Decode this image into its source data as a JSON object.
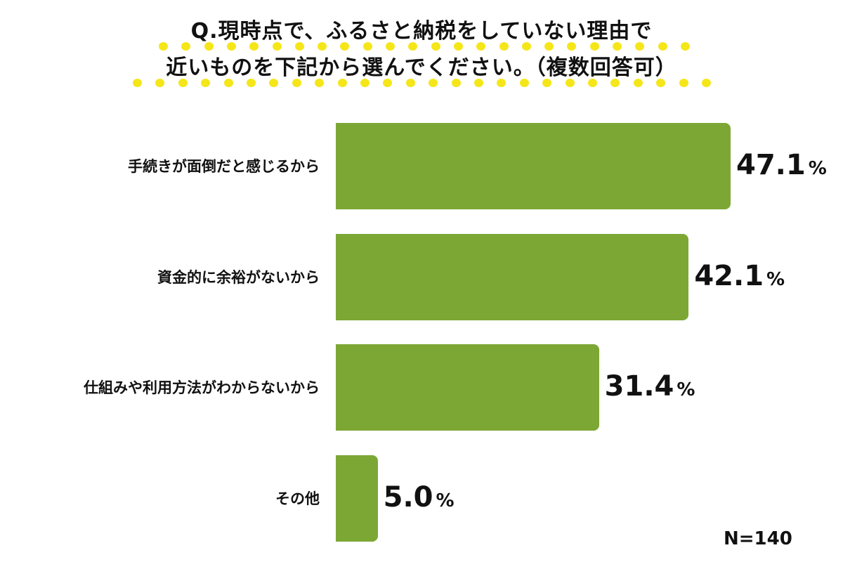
{
  "chart_data": {
    "type": "bar",
    "orientation": "horizontal",
    "title_lines": [
      "Q.現時点で、ふるさと納税をしていない理由で",
      "近いものを下記から選んでください。（複数回答可）"
    ],
    "categories": [
      "手続きが面倒だと感じるから",
      "資金的に余裕がないから",
      "仕組みや利用方法がわからないから",
      "その他"
    ],
    "values": [
      47.1,
      42.1,
      31.4,
      5.0
    ],
    "value_labels": [
      "47.1",
      "42.1",
      "31.4",
      "5.0"
    ],
    "unit": "%",
    "sample_size": "N=140",
    "xlim": [
      0,
      47.1
    ],
    "grid": false,
    "legend": "none",
    "bar_color": "#7da734",
    "highlight_dot_color": "#f5e61a"
  }
}
